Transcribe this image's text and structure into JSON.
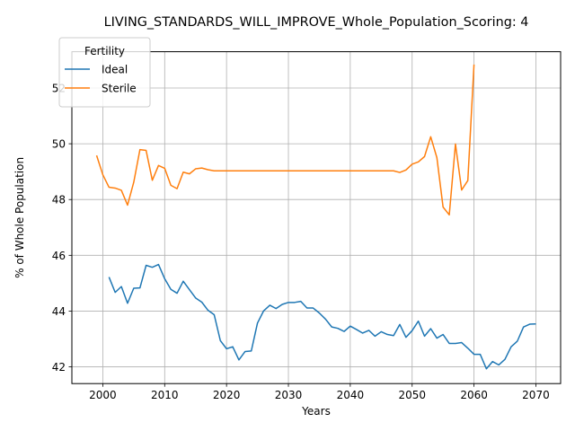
{
  "chart_data": {
    "type": "line",
    "title": "LIVING_STANDARDS_WILL_IMPROVE_Whole_Population_Scoring: 4",
    "xlabel": "Years",
    "ylabel": "% of Whole Population",
    "xlim": [
      1995,
      2074
    ],
    "ylim": [
      41.4,
      53.3
    ],
    "xticks": [
      2000,
      2010,
      2020,
      2030,
      2040,
      2050,
      2060,
      2070
    ],
    "yticks": [
      42,
      44,
      46,
      48,
      50,
      52
    ],
    "grid": true,
    "legend": {
      "title": "Fertility",
      "position": "upper-left"
    },
    "series": [
      {
        "name": "Ideal",
        "color": "#1f77b4",
        "x": [
          2001,
          2002,
          2003,
          2004,
          2005,
          2006,
          2007,
          2008,
          2009,
          2010,
          2011,
          2012,
          2013,
          2014,
          2015,
          2016,
          2017,
          2018,
          2019,
          2020,
          2021,
          2022,
          2023,
          2024,
          2025,
          2026,
          2027,
          2028,
          2029,
          2030,
          2031,
          2032,
          2033,
          2034,
          2035,
          2036,
          2037,
          2038,
          2039,
          2040,
          2041,
          2042,
          2043,
          2044,
          2045,
          2046,
          2047,
          2048,
          2049,
          2050,
          2051,
          2052,
          2053,
          2054,
          2055,
          2056,
          2057,
          2058,
          2059,
          2060,
          2061,
          2062,
          2063,
          2064,
          2065,
          2066,
          2067,
          2068,
          2069,
          2070
        ],
        "y": [
          45.22,
          44.67,
          44.88,
          44.28,
          44.82,
          44.83,
          45.64,
          45.57,
          45.67,
          45.16,
          44.78,
          44.64,
          45.07,
          44.77,
          44.47,
          44.32,
          44.03,
          43.87,
          42.94,
          42.65,
          42.72,
          42.25,
          42.55,
          42.57,
          43.57,
          44.01,
          44.21,
          44.09,
          44.24,
          44.31,
          44.31,
          44.35,
          44.11,
          44.11,
          43.93,
          43.71,
          43.43,
          43.38,
          43.27,
          43.46,
          43.34,
          43.21,
          43.31,
          43.1,
          43.26,
          43.16,
          43.12,
          43.52,
          43.06,
          43.3,
          43.64,
          43.1,
          43.37,
          43.03,
          43.16,
          42.84,
          42.84,
          42.87,
          42.67,
          42.45,
          42.45,
          41.93,
          42.19,
          42.07,
          42.27,
          42.72,
          42.92,
          43.43,
          43.53,
          43.54
        ]
      },
      {
        "name": "Sterile",
        "color": "#ff7f0e",
        "x": [
          1999,
          2000,
          2001,
          2002,
          2003,
          2004,
          2005,
          2006,
          2007,
          2008,
          2009,
          2010,
          2011,
          2012,
          2013,
          2014,
          2015,
          2016,
          2017,
          2018,
          2019,
          2020,
          2021,
          2022,
          2023,
          2024,
          2025,
          2026,
          2027,
          2028,
          2029,
          2030,
          2031,
          2032,
          2033,
          2034,
          2035,
          2036,
          2037,
          2038,
          2039,
          2040,
          2041,
          2042,
          2043,
          2044,
          2045,
          2046,
          2047,
          2048,
          2049,
          2050,
          2051,
          2052,
          2053,
          2054,
          2055,
          2056,
          2057,
          2058,
          2059,
          2060
        ],
        "y": [
          49.58,
          48.89,
          48.44,
          48.41,
          48.33,
          47.8,
          48.62,
          49.79,
          49.76,
          48.69,
          49.22,
          49.12,
          48.51,
          48.39,
          48.98,
          48.92,
          49.1,
          49.13,
          49.07,
          49.03,
          49.03,
          49.03,
          49.03,
          49.03,
          49.03,
          49.03,
          49.03,
          49.03,
          49.03,
          49.03,
          49.03,
          49.03,
          49.03,
          49.03,
          49.03,
          49.03,
          49.03,
          49.03,
          49.03,
          49.03,
          49.03,
          49.03,
          49.03,
          49.03,
          49.03,
          49.03,
          49.03,
          49.03,
          49.03,
          48.97,
          49.06,
          49.27,
          49.35,
          49.54,
          50.25,
          49.5,
          47.73,
          47.45,
          49.99,
          48.34,
          48.68,
          52.84
        ]
      }
    ]
  }
}
